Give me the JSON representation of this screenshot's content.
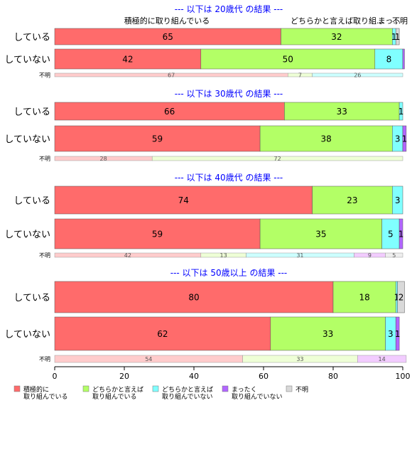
{
  "chart_data": {
    "type": "bar",
    "orientation": "horizontal",
    "stacked": true,
    "xlim": [
      0,
      100
    ],
    "xticks": [
      0,
      20,
      40,
      60,
      80,
      100
    ],
    "top_annotations": [
      "積極的に取り組んでいる",
      "どちらかと言えば取り組…",
      "まっ…",
      "不明"
    ],
    "legend": {
      "position": "bottom",
      "entries": [
        {
          "label": [
            "積極的に",
            "取り組んでいる"
          ],
          "color": "#ff6b6b"
        },
        {
          "label": [
            "どちらかと言えば",
            "取り組んでいる"
          ],
          "color": "#b3ff66"
        },
        {
          "label": [
            "どちらかと言えば",
            "取り組んでいない"
          ],
          "color": "#80ffff"
        },
        {
          "label": [
            "まったく",
            "取り組んでいない"
          ],
          "color": "#b266ff"
        },
        {
          "label": [
            "不明"
          ],
          "color": "#d9d9d9"
        }
      ]
    },
    "groups": [
      {
        "title": "--- 以下は 20歳代 の結果 ---",
        "rows": [
          {
            "label": "している",
            "values": [
              65,
              32,
              1,
              0,
              1
            ],
            "value_labels": [
              "65",
              "32",
              "1",
              "",
              "1"
            ]
          },
          {
            "label": "していない",
            "values": [
              42,
              50,
              8,
              0.5,
              0
            ],
            "value_labels": [
              "42",
              "50",
              "8",
              "",
              ""
            ]
          }
        ],
        "unknown": {
          "label": "不明",
          "values": [
            67,
            7,
            26,
            0,
            0
          ],
          "value_labels": [
            "67",
            "7",
            "26",
            "",
            ""
          ]
        }
      },
      {
        "title": "--- 以下は 30歳代 の結果 ---",
        "rows": [
          {
            "label": "している",
            "values": [
              66,
              33,
              1,
              0,
              0
            ],
            "value_labels": [
              "66",
              "33",
              "1",
              "",
              ""
            ]
          },
          {
            "label": "していない",
            "values": [
              59,
              38,
              3,
              1,
              0
            ],
            "value_labels": [
              "59",
              "38",
              "3",
              "1",
              ""
            ]
          }
        ],
        "unknown": {
          "label": "不明",
          "values": [
            28,
            72,
            0,
            0,
            0
          ],
          "value_labels": [
            "28",
            "72",
            "",
            "",
            ""
          ]
        }
      },
      {
        "title": "--- 以下は 40歳代 の結果 ---",
        "rows": [
          {
            "label": "している",
            "values": [
              74,
              23,
              3,
              0,
              0
            ],
            "value_labels": [
              "74",
              "23",
              "3",
              "",
              ""
            ]
          },
          {
            "label": "していない",
            "values": [
              59,
              35,
              5,
              1,
              0
            ],
            "value_labels": [
              "59",
              "35",
              "5",
              "1",
              ""
            ]
          }
        ],
        "unknown": {
          "label": "不明",
          "values": [
            42,
            13,
            31,
            9,
            5
          ],
          "value_labels": [
            "42",
            "13",
            "31",
            "9",
            "5"
          ]
        }
      },
      {
        "title": "--- 以下は 50歳以上 の結果 ---",
        "rows": [
          {
            "label": "している",
            "values": [
              80,
              18,
              0.5,
              0,
              2
            ],
            "value_labels": [
              "80",
              "18",
              "1",
              "",
              "2"
            ]
          },
          {
            "label": "していない",
            "values": [
              62,
              33,
              3,
              1,
              0
            ],
            "value_labels": [
              "62",
              "33",
              "3",
              "1",
              ""
            ]
          }
        ],
        "unknown": {
          "label": "不明",
          "values": [
            54,
            33,
            0,
            14,
            0
          ],
          "value_labels": [
            "54",
            "33",
            "",
            "14",
            ""
          ]
        }
      }
    ],
    "colors": [
      "#ff6b6b",
      "#b3ff66",
      "#80ffff",
      "#b266ff",
      "#d9d9d9"
    ],
    "light_colors": [
      "#ffcccc",
      "#eeffd6",
      "#ccffff",
      "#f2ccff",
      "#eeeeee"
    ]
  }
}
